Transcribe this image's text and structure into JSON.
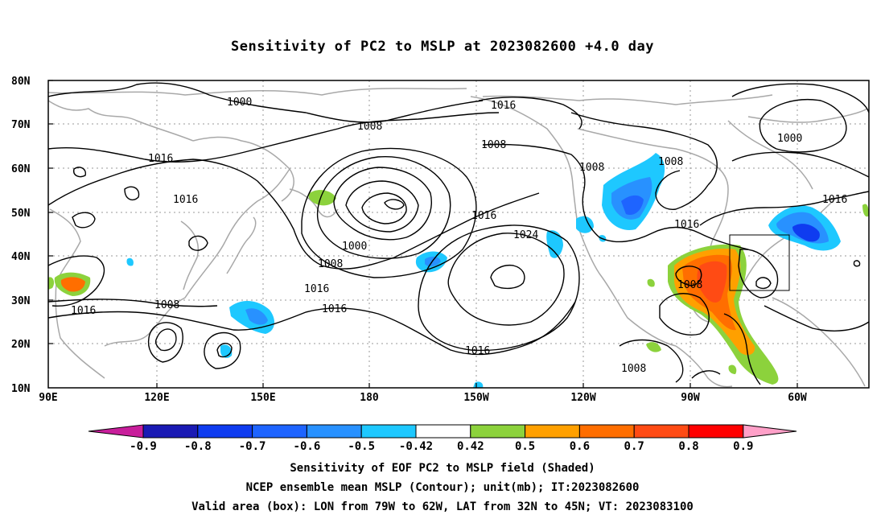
{
  "title": "Sensitivity of PC2 to MSLP at 2023082600 +4.0 day",
  "lat_labels": [
    "80N",
    "70N",
    "60N",
    "50N",
    "40N",
    "30N",
    "20N",
    "10N"
  ],
  "lon_labels": [
    "90E",
    "120E",
    "150E",
    "180",
    "150W",
    "120W",
    "90W",
    "60W"
  ],
  "contour_labels": [
    "1000",
    "1008",
    "1016",
    "1016",
    "1008",
    "1016",
    "1008",
    "1000",
    "1008",
    "1016",
    "1024",
    "1016",
    "1016",
    "1008",
    "1008",
    "1016",
    "1016",
    "1008",
    "1008",
    "1000",
    "1016",
    "1008",
    "1016"
  ],
  "colorbar": {
    "labels": [
      "-0.9",
      "-0.8",
      "-0.7",
      "-0.6",
      "-0.5",
      "-0.42",
      "0.42",
      "0.5",
      "0.6",
      "0.7",
      "0.8",
      "0.9"
    ],
    "colors": [
      "#1a1ab4",
      "#0f3cf0",
      "#1e64ff",
      "#2891ff",
      "#1ec8ff",
      "#ffffff",
      "#8cd23c",
      "#ffa000",
      "#ff6e00",
      "#ff4b14",
      "#ff0000"
    ],
    "low_color": "#c81e9b",
    "high_color": "#ffa0c8"
  },
  "valid_box": {
    "lon_from": "79W",
    "lon_to": "62W",
    "lat_from": "32N",
    "lat_to": "45N"
  },
  "captions": [
    "Sensitivity of EOF PC2 to MSLP field (Shaded)",
    "NCEP ensemble mean MSLP (Contour); unit(mb); IT:2023082600",
    "Valid area (box): LON from 79W to 62W, LAT from 32N to 45N; VT: 2023083100"
  ]
}
